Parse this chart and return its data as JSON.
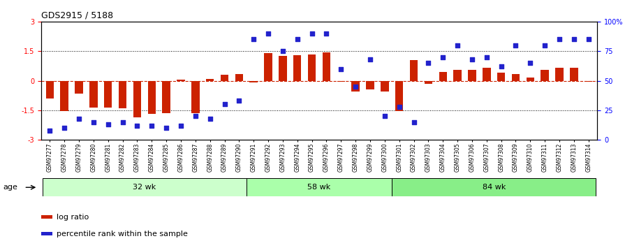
{
  "title": "GDS2915 / 5188",
  "samples": [
    "GSM97277",
    "GSM97278",
    "GSM97279",
    "GSM97280",
    "GSM97281",
    "GSM97282",
    "GSM97283",
    "GSM97284",
    "GSM97285",
    "GSM97286",
    "GSM97287",
    "GSM97288",
    "GSM97289",
    "GSM97290",
    "GSM97291",
    "GSM97292",
    "GSM97293",
    "GSM97294",
    "GSM97295",
    "GSM97296",
    "GSM97297",
    "GSM97298",
    "GSM97299",
    "GSM97300",
    "GSM97301",
    "GSM97302",
    "GSM97303",
    "GSM97304",
    "GSM97305",
    "GSM97306",
    "GSM97307",
    "GSM97308",
    "GSM97309",
    "GSM97310",
    "GSM97311",
    "GSM97312",
    "GSM97313",
    "GSM97314"
  ],
  "log_ratio": [
    -0.9,
    -1.55,
    -0.65,
    -1.35,
    -1.35,
    -1.4,
    -1.85,
    -1.7,
    -1.65,
    0.05,
    -1.65,
    0.1,
    0.3,
    0.35,
    -0.1,
    1.4,
    1.25,
    1.3,
    1.35,
    1.45,
    -0.05,
    -0.55,
    -0.45,
    -0.55,
    -1.55,
    1.05,
    -0.15,
    0.45,
    0.55,
    0.55,
    0.65,
    0.4,
    0.35,
    0.15,
    0.55,
    0.65,
    0.65,
    -0.05
  ],
  "percentile": [
    8,
    10,
    18,
    15,
    13,
    15,
    12,
    12,
    10,
    12,
    20,
    18,
    30,
    33,
    85,
    90,
    75,
    85,
    90,
    90,
    60,
    45,
    68,
    20,
    28,
    15,
    65,
    70,
    80,
    68,
    70,
    62,
    80,
    65,
    80,
    85,
    85,
    85
  ],
  "groups": [
    {
      "label": "32 wk",
      "start": 0,
      "end": 14,
      "color": "#ccffcc"
    },
    {
      "label": "58 wk",
      "start": 14,
      "end": 24,
      "color": "#aaffaa"
    },
    {
      "label": "84 wk",
      "start": 24,
      "end": 38,
      "color": "#88ee88"
    }
  ],
  "bar_color": "#cc2200",
  "dot_color": "#2222cc",
  "ylim_left": [
    -3,
    3
  ],
  "ylim_right": [
    0,
    100
  ],
  "yticks_left": [
    -3,
    -1.5,
    0,
    1.5,
    3
  ],
  "yticks_right": [
    0,
    25,
    50,
    75,
    100
  ],
  "ytick_labels_right": [
    "0",
    "25",
    "50",
    "75",
    "100%"
  ],
  "background_color": "#ffffff",
  "age_label": "age",
  "legend_log_ratio": "log ratio",
  "legend_percentile": "percentile rank within the sample"
}
